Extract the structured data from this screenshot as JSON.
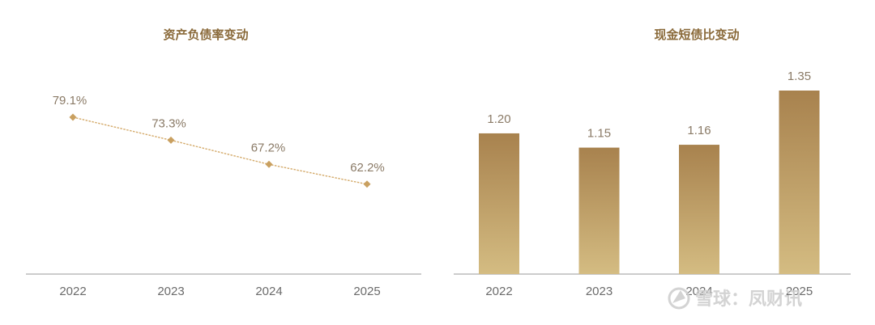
{
  "colors": {
    "line": "#d4aa6a",
    "marker": "#c9a060",
    "bar_top": "#a8824e",
    "bar_bottom": "#d4bc82",
    "axis": "#9a9a9a",
    "title": "#8a6a3a"
  },
  "chart_data": [
    {
      "type": "line",
      "title": "资产负债率变动",
      "xlabel": "",
      "ylabel": "",
      "categories": [
        "2022",
        "2023",
        "2024",
        "2025"
      ],
      "values": [
        79.1,
        73.3,
        67.2,
        62.2
      ],
      "data_labels": [
        "79.1%",
        "73.3%",
        "67.2%",
        "62.2%"
      ],
      "unit": "%",
      "ylim": [
        0,
        100
      ],
      "grid": false,
      "legend": "none"
    },
    {
      "type": "bar",
      "title": "现金短债比变动",
      "xlabel": "",
      "ylabel": "",
      "categories": [
        "2022",
        "2023",
        "2024",
        "2025"
      ],
      "values": [
        1.2,
        1.15,
        1.16,
        1.35
      ],
      "data_labels": [
        "1.20",
        "1.15",
        "1.16",
        "1.35"
      ],
      "ylim": [
        0,
        1.5
      ],
      "grid": false,
      "legend": "none"
    }
  ],
  "watermark": {
    "text": "雪球：凤财讯",
    "icon": "snowball-logo-icon"
  }
}
